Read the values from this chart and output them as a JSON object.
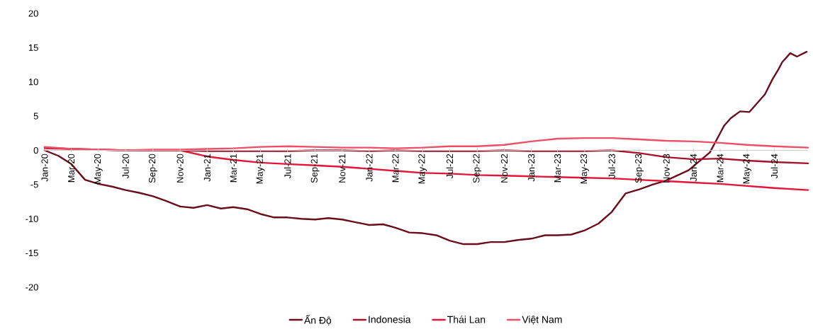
{
  "chart_data": {
    "type": "line",
    "x": [
      "2020-01",
      "2020-03",
      "2020-05",
      "2020-07",
      "2020-09",
      "2020-11",
      "2021-01",
      "2021-03",
      "2021-05",
      "2021-07",
      "2021-09",
      "2021-11",
      "2022-01",
      "2022-03",
      "2022-05",
      "2022-07",
      "2022-09",
      "2022-11",
      "2023-01",
      "2023-03",
      "2023-05",
      "2023-07",
      "2023-09",
      "2023-11",
      "2024-01",
      "2024-03",
      "2024-05",
      "2024-07",
      "2024-09-15"
    ],
    "series": [
      {
        "name": "Ấn Độ",
        "color": "#6b0d1d",
        "x": [
          "2020-01",
          "2020-02",
          "2020-03",
          "2020-04",
          "2020-05",
          "2020-06",
          "2020-07",
          "2020-08",
          "2020-09",
          "2020-10",
          "2020-11",
          "2020-12",
          "2021-01",
          "2021-02",
          "2021-03",
          "2021-04",
          "2021-05",
          "2021-06",
          "2021-07",
          "2021-08",
          "2021-09",
          "2021-10",
          "2021-11",
          "2021-12",
          "2022-01",
          "2022-02",
          "2022-03",
          "2022-04",
          "2022-05",
          "2022-06",
          "2022-07",
          "2022-08",
          "2022-09",
          "2022-10",
          "2022-11",
          "2022-12",
          "2023-01",
          "2023-02",
          "2023-03",
          "2023-04",
          "2023-05",
          "2023-06",
          "2023-07",
          "2023-08",
          "2023-09",
          "2023-10",
          "2023-11",
          "2023-12-21",
          "2024-02-07",
          "2024-03-10",
          "2024-03-25",
          "2024-04-15",
          "2024-05-06",
          "2024-06-10",
          "2024-06-27",
          "2024-07-10",
          "2024-07-19",
          "2024-08-06",
          "2024-08-21",
          "2024-09-12"
        ],
        "values": [
          0,
          -0.8,
          -2.0,
          -4.3,
          -4.9,
          -5.3,
          -5.8,
          -6.2,
          -6.7,
          -7.4,
          -8.2,
          -8.4,
          -8.0,
          -8.5,
          -8.3,
          -8.6,
          -9.3,
          -9.8,
          -9.8,
          -10.0,
          -10.1,
          -9.9,
          -10.1,
          -10.5,
          -10.9,
          -10.8,
          -11.3,
          -12.0,
          -12.1,
          -12.4,
          -13.2,
          -13.7,
          -13.7,
          -13.4,
          -13.4,
          -13.1,
          -12.9,
          -12.4,
          -12.4,
          -12.3,
          -11.7,
          -10.7,
          -9.0,
          -6.3,
          -5.7,
          -5.0,
          -4.4,
          -2.9,
          -0.3,
          3.6,
          4.7,
          5.7,
          5.6,
          8.2,
          10.4,
          11.8,
          12.9,
          14.2,
          13.7,
          14.4
        ]
      },
      {
        "name": "Indonesia",
        "color": "#a8102c",
        "values": [
          0.4,
          0.2,
          0.1,
          0.0,
          0.0,
          0.0,
          -0.1,
          -0.1,
          -0.1,
          -0.1,
          0.0,
          0.0,
          -0.1,
          0.0,
          -0.1,
          -0.1,
          -0.1,
          0.0,
          -0.1,
          -0.1,
          -0.1,
          0.0,
          -0.4,
          -1.0,
          -1.3,
          -1.2,
          -1.5,
          -1.7,
          -1.9
        ]
      },
      {
        "name": "Thái Lan",
        "color": "#e3163a",
        "values": [
          0.3,
          0.2,
          0.1,
          0.0,
          0.0,
          0.0,
          -0.9,
          -1.4,
          -1.8,
          -2.0,
          -2.2,
          -2.4,
          -2.7,
          -3.0,
          -3.3,
          -3.4,
          -3.6,
          -3.7,
          -3.8,
          -3.9,
          -4.0,
          -4.1,
          -4.3,
          -4.5,
          -4.7,
          -4.9,
          -5.2,
          -5.5,
          -5.8
        ]
      },
      {
        "name": "Việt Nam",
        "color": "#ef4f65",
        "values": [
          0.5,
          0.2,
          0.1,
          0.0,
          0.1,
          0.1,
          0.2,
          0.3,
          0.5,
          0.6,
          0.5,
          0.4,
          0.4,
          0.3,
          0.4,
          0.6,
          0.6,
          0.8,
          1.3,
          1.7,
          1.8,
          1.8,
          1.6,
          1.4,
          1.3,
          1.1,
          0.8,
          0.6,
          0.4
        ]
      }
    ],
    "xlim": [
      "2020-01",
      "2024-09-15"
    ],
    "xticks": [
      {
        "value": "2020-01",
        "label": "Jan-20"
      },
      {
        "value": "2020-03",
        "label": "Mar-20"
      },
      {
        "value": "2020-05",
        "label": "May-20"
      },
      {
        "value": "2020-07",
        "label": "Jul-20"
      },
      {
        "value": "2020-09",
        "label": "Sep-20"
      },
      {
        "value": "2020-11",
        "label": "Nov-20"
      },
      {
        "value": "2021-01",
        "label": "Jan-21"
      },
      {
        "value": "2021-03",
        "label": "Mar-21"
      },
      {
        "value": "2021-05",
        "label": "May-21"
      },
      {
        "value": "2021-07",
        "label": "Jul-21"
      },
      {
        "value": "2021-09",
        "label": "Sep-21"
      },
      {
        "value": "2021-11",
        "label": "Nov-21"
      },
      {
        "value": "2022-01",
        "label": "Jan-22"
      },
      {
        "value": "2022-03",
        "label": "Mar-22"
      },
      {
        "value": "2022-05",
        "label": "May-22"
      },
      {
        "value": "2022-07",
        "label": "Jul-22"
      },
      {
        "value": "2022-09",
        "label": "Sep-22"
      },
      {
        "value": "2022-11",
        "label": "Nov-22"
      },
      {
        "value": "2023-01",
        "label": "Jan-23"
      },
      {
        "value": "2023-03",
        "label": "Mar-23"
      },
      {
        "value": "2023-05",
        "label": "May-23"
      },
      {
        "value": "2023-07",
        "label": "Jul-23"
      },
      {
        "value": "2023-09",
        "label": "Sep-23"
      },
      {
        "value": "2023-11",
        "label": "Nov-23"
      },
      {
        "value": "2024-01",
        "label": "Jan-24"
      },
      {
        "value": "2024-03",
        "label": "Mar-24"
      },
      {
        "value": "2024-05",
        "label": "May-24"
      },
      {
        "value": "2024-07",
        "label": "Jul-24"
      }
    ],
    "ylim": [
      -20,
      20
    ],
    "yticks": [
      -20,
      -15,
      -10,
      -5,
      0,
      5,
      10,
      15,
      20
    ],
    "legend": "bottom",
    "marker": "none",
    "line_style": "solid"
  }
}
